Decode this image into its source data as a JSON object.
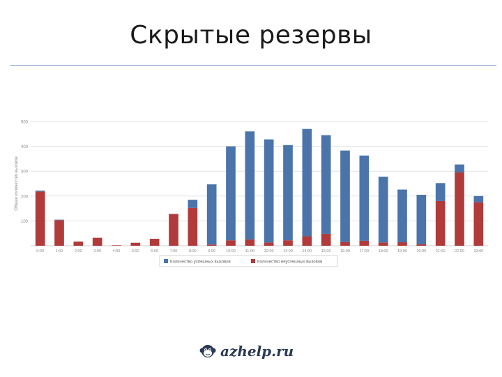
{
  "slide": {
    "title": "Скрытые резервы"
  },
  "logo": {
    "text": "azhelp.ru"
  },
  "colors": {
    "successful": "#4a74aa",
    "unsuccessful": "#b13a3a",
    "grid": "#e3e3e3",
    "axis_text": "#8c8c8c",
    "rule": "#8fb0cf"
  },
  "chart_data": {
    "type": "bar",
    "stacked": true,
    "ylabel": "Общее количество вызовов",
    "xlabel": "",
    "ylim": [
      0,
      500
    ],
    "yticks": [
      100,
      200,
      300,
      400,
      500
    ],
    "grid": true,
    "legend_position": "bottom",
    "categories": [
      "0:00",
      "1:00",
      "2:00",
      "3:00",
      "4:00",
      "5:00",
      "6:00",
      "7:00",
      "8:00",
      "9:00",
      "10:00",
      "11:00",
      "12:00",
      "13:00",
      "14:00",
      "15:00",
      "16:00",
      "17:00",
      "18:00",
      "19:00",
      "20:00",
      "21:00",
      "22:00",
      "23:00"
    ],
    "series": [
      {
        "name": "Количество неуспешных вызовов",
        "color": "#b13a3a",
        "values": [
          218,
          103,
          17,
          32,
          2,
          12,
          28,
          128,
          152,
          5,
          22,
          25,
          13,
          22,
          38,
          48,
          15,
          20,
          13,
          14,
          6,
          180,
          295,
          175
        ]
      },
      {
        "name": "Количество успешных вызовов",
        "color": "#4a74aa",
        "values": [
          4,
          2,
          0,
          0,
          0,
          0,
          0,
          0,
          33,
          242,
          378,
          435,
          415,
          383,
          432,
          397,
          368,
          343,
          265,
          212,
          199,
          72,
          32,
          25
        ]
      }
    ],
    "legend": [
      "Количество успешных вызовов",
      "Количество неуспешных вызовов"
    ]
  }
}
